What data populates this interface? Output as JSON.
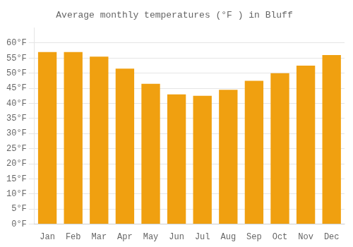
{
  "chart_data": {
    "type": "bar",
    "title": "Average monthly temperatures (°F ) in Bluff",
    "categories": [
      "Jan",
      "Feb",
      "Mar",
      "Apr",
      "May",
      "Jun",
      "Jul",
      "Aug",
      "Sep",
      "Oct",
      "Nov",
      "Dec"
    ],
    "values": [
      57,
      57,
      55.5,
      51.5,
      46.5,
      43,
      42.5,
      44.5,
      47.5,
      50,
      52.5,
      56
    ],
    "color": "#F0A010",
    "ylim": [
      0,
      65
    ],
    "yticks": [
      {
        "value": 0,
        "label": "0°F"
      },
      {
        "value": 5,
        "label": "5°F"
      },
      {
        "value": 10,
        "label": "10°F"
      },
      {
        "value": 15,
        "label": "15°F"
      },
      {
        "value": 20,
        "label": "20°F"
      },
      {
        "value": 25,
        "label": "25°F"
      },
      {
        "value": 30,
        "label": "30°F"
      },
      {
        "value": 35,
        "label": "35°F"
      },
      {
        "value": 40,
        "label": "40°F"
      },
      {
        "value": 45,
        "label": "45°F"
      },
      {
        "value": 50,
        "label": "50°F"
      },
      {
        "value": 55,
        "label": "55°F"
      },
      {
        "value": 60,
        "label": "60°F"
      }
    ],
    "grid": true
  }
}
